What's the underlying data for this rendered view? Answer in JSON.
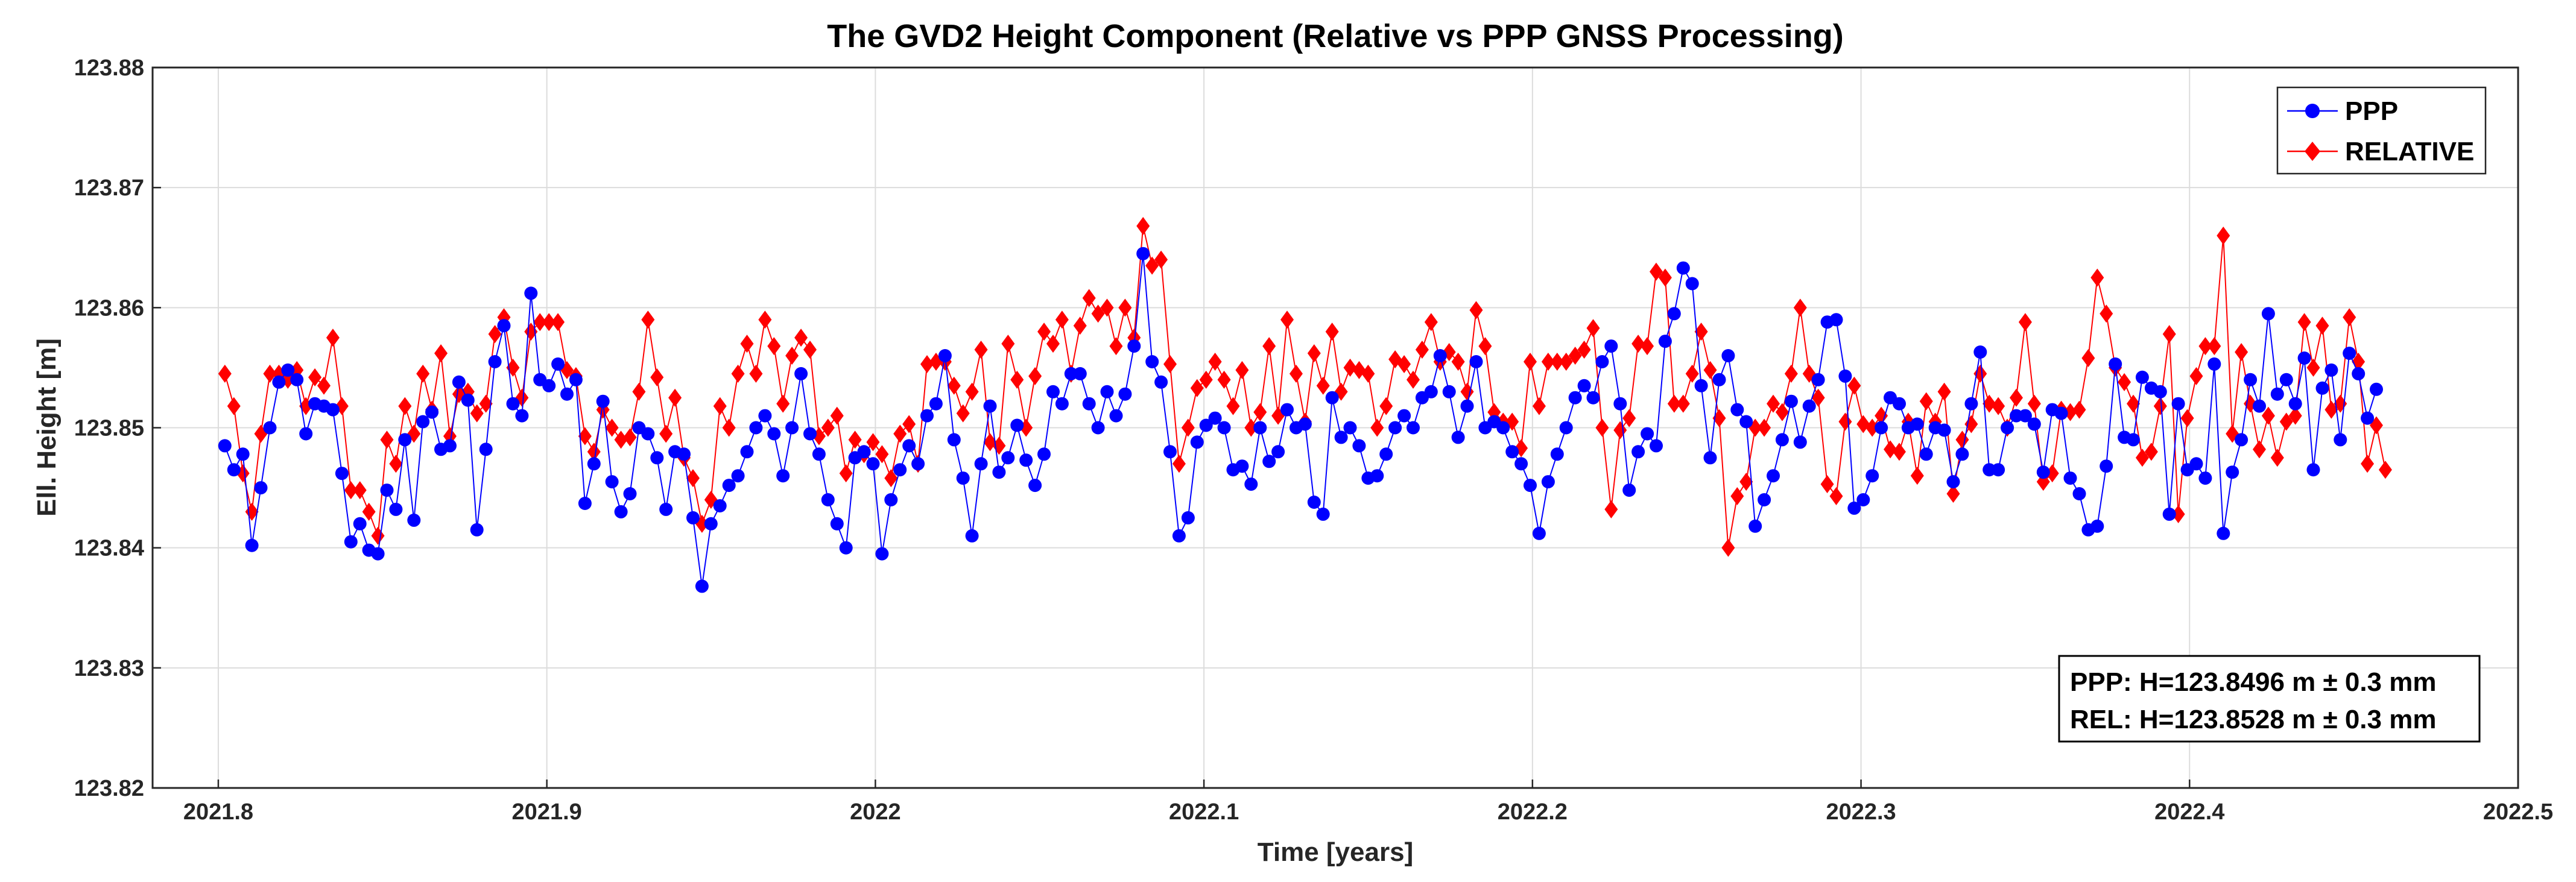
{
  "chart_data": {
    "type": "line",
    "title": "The GVD2 Height Component (Relative vs PPP GNSS Processing)",
    "xlabel": "Time [years]",
    "ylabel": "Ell. Height [m]",
    "xlim": [
      2021.78,
      2022.5
    ],
    "ylim": [
      123.82,
      123.88
    ],
    "x_ticks": [
      2021.8,
      2021.9,
      2022.0,
      2022.1,
      2022.2,
      2022.3,
      2022.4,
      2022.5
    ],
    "x_tick_labels": [
      "2021.8",
      "2021.9",
      "2022",
      "2022.1",
      "2022.2",
      "2022.3",
      "2022.4",
      "2022.5"
    ],
    "y_ticks": [
      123.82,
      123.83,
      123.84,
      123.85,
      123.86,
      123.87,
      123.88
    ],
    "y_tick_labels": [
      "123.82",
      "123.83",
      "123.84",
      "123.85",
      "123.86",
      "123.87",
      "123.88"
    ],
    "grid": true,
    "legend_position": "top-right",
    "stats_position": "bottom-right",
    "x_start": 2021.802,
    "x_step": 0.00274,
    "series": [
      {
        "name": "PPP",
        "color": "#0000FF",
        "marker": "circle",
        "values": [
          123.8485,
          123.8465,
          123.8478,
          123.8402,
          123.845,
          123.85,
          123.8538,
          123.8548,
          123.854,
          123.8495,
          123.852,
          123.8518,
          123.8515,
          123.8462,
          123.8405,
          123.842,
          123.8398,
          123.8395,
          123.8448,
          123.8432,
          123.849,
          123.8423,
          123.8505,
          123.8513,
          123.8482,
          123.8485,
          123.8538,
          123.8523,
          123.8415,
          123.8482,
          123.8555,
          123.8585,
          123.852,
          123.851,
          123.8612,
          123.854,
          123.8535,
          123.8553,
          123.8528,
          123.854,
          123.8437,
          123.847,
          123.8522,
          123.8455,
          123.843,
          123.8445,
          123.85,
          123.8495,
          123.8475,
          123.8432,
          123.848,
          123.8478,
          123.8425,
          123.8368,
          123.842,
          123.8435,
          123.8452,
          123.846,
          123.848,
          123.85,
          123.851,
          123.8495,
          123.846,
          123.85,
          123.8545,
          123.8495,
          123.8478,
          123.844,
          123.842,
          123.84,
          123.8475,
          123.848,
          123.847,
          123.8395,
          123.844,
          123.8465,
          123.8485,
          123.847,
          123.851,
          123.852,
          123.856,
          123.849,
          123.8458,
          123.841,
          123.847,
          123.8518,
          123.8463,
          123.8475,
          123.8502,
          123.8473,
          123.8452,
          123.8478,
          123.853,
          123.852,
          123.8545,
          123.8545,
          123.852,
          123.85,
          123.853,
          123.851,
          123.8528,
          123.8568,
          123.8645,
          123.8555,
          123.8538,
          123.848,
          123.841,
          123.8425,
          123.8488,
          123.8502,
          123.8508,
          123.85,
          123.8465,
          123.8468,
          123.8453,
          123.85,
          123.8472,
          123.848,
          123.8515,
          123.85,
          123.8503,
          123.8438,
          123.8428,
          123.8525,
          123.8492,
          123.85,
          123.8485,
          123.8458,
          123.846,
          123.8478,
          123.85,
          123.851,
          123.85,
          123.8525,
          123.853,
          123.856,
          123.853,
          123.8492,
          123.8518,
          123.8555,
          123.85,
          123.8505,
          123.85,
          123.848,
          123.847,
          123.8452,
          123.8412,
          123.8455,
          123.8478,
          123.85,
          123.8525,
          123.8535,
          123.8525,
          123.8555,
          123.8568,
          123.852,
          123.8448,
          123.848,
          123.8495,
          123.8485,
          123.8572,
          123.8595,
          123.8633,
          123.862,
          123.8535,
          123.8475,
          123.854,
          123.856,
          123.8515,
          123.8505,
          123.8418,
          123.844,
          123.846,
          123.849,
          123.8522,
          123.8488,
          123.8518,
          123.854,
          123.8588,
          123.859,
          123.8543,
          123.8433,
          123.844,
          123.846,
          123.85,
          123.8525,
          123.852,
          123.85,
          123.8503,
          123.8478,
          123.85,
          123.8498,
          123.8455,
          123.8478,
          123.852,
          123.8563,
          123.8465,
          123.8465,
          123.85,
          123.851,
          123.851,
          123.8503,
          123.8463,
          123.8515,
          123.8512,
          123.8458,
          123.8445,
          123.8415,
          123.8418,
          123.8468,
          123.8553,
          123.8492,
          123.849,
          123.8542,
          123.8533,
          123.853,
          123.8428,
          123.852,
          123.8465,
          123.847,
          123.8458,
          123.8553,
          123.8412,
          123.8463,
          123.849,
          123.854,
          123.8518,
          123.8595,
          123.8528,
          123.854,
          123.852,
          123.8558,
          123.8465,
          123.8533,
          123.8548,
          123.849,
          123.8562,
          123.8545,
          123.8508,
          123.8532
        ]
      },
      {
        "name": "RELATIVE",
        "color": "#FF0000",
        "marker": "diamond",
        "values": [
          123.8545,
          123.8518,
          123.8462,
          123.843,
          123.8495,
          123.8545,
          123.8545,
          123.854,
          123.8548,
          123.8518,
          123.8542,
          123.8535,
          123.8575,
          123.8518,
          123.8448,
          123.8448,
          123.843,
          123.841,
          123.849,
          123.847,
          123.8518,
          123.8495,
          123.8545,
          123.8515,
          123.8562,
          123.8493,
          123.8528,
          123.853,
          123.8512,
          123.852,
          123.8578,
          123.8592,
          123.855,
          123.8525,
          123.858,
          123.8588,
          123.8588,
          123.8588,
          123.8548,
          123.8543,
          123.8493,
          123.848,
          123.8515,
          123.85,
          123.849,
          123.8492,
          123.853,
          123.859,
          123.8542,
          123.8495,
          123.8525,
          123.8475,
          123.8458,
          123.842,
          123.844,
          123.8518,
          123.85,
          123.8545,
          123.857,
          123.8545,
          123.859,
          123.8568,
          123.852,
          123.856,
          123.8575,
          123.8565,
          123.8493,
          123.85,
          123.851,
          123.8462,
          123.849,
          123.8478,
          123.8488,
          123.8478,
          123.8458,
          123.8495,
          123.8503,
          123.847,
          123.8553,
          123.8555,
          123.8555,
          123.8535,
          123.8512,
          123.853,
          123.8565,
          123.8488,
          123.8485,
          123.857,
          123.854,
          123.85,
          123.8543,
          123.858,
          123.857,
          123.859,
          123.8545,
          123.8585,
          123.8608,
          123.8595,
          123.86,
          123.8568,
          123.86,
          123.8575,
          123.8668,
          123.8635,
          123.864,
          123.8553,
          123.847,
          123.85,
          123.8533,
          123.854,
          123.8555,
          123.854,
          123.8518,
          123.8548,
          123.85,
          123.8513,
          123.8568,
          123.851,
          123.859,
          123.8545,
          123.8505,
          123.8562,
          123.8535,
          123.858,
          123.853,
          123.855,
          123.8548,
          123.8545,
          123.85,
          123.8518,
          123.8557,
          123.8553,
          123.854,
          123.8565,
          123.8588,
          123.8555,
          123.8563,
          123.8555,
          123.853,
          123.8598,
          123.8568,
          123.8513,
          123.8505,
          123.8505,
          123.8483,
          123.8555,
          123.8518,
          123.8555,
          123.8555,
          123.8555,
          123.856,
          123.8565,
          123.8583,
          123.85,
          123.8432,
          123.8498,
          123.8508,
          123.857,
          123.8568,
          123.863,
          123.8625,
          123.852,
          123.852,
          123.8545,
          123.858,
          123.8548,
          123.8508,
          123.84,
          123.8443,
          123.8455,
          123.85,
          123.85,
          123.852,
          123.8513,
          123.8545,
          123.86,
          123.8545,
          123.8525,
          123.8453,
          123.8443,
          123.8505,
          123.8535,
          123.8503,
          123.85,
          123.851,
          123.8482,
          123.848,
          123.8505,
          123.846,
          123.8522,
          123.8505,
          123.853,
          123.8445,
          123.849,
          123.8503,
          123.8545,
          123.852,
          123.8518,
          123.85,
          123.8525,
          123.8588,
          123.852,
          123.8455,
          123.8462,
          123.8515,
          123.8513,
          123.8515,
          123.8558,
          123.8625,
          123.8595,
          123.855,
          123.8538,
          123.852,
          123.8475,
          123.848,
          123.8518,
          123.8578,
          123.8428,
          123.8508,
          123.8543,
          123.8568,
          123.8568,
          123.866,
          123.8495,
          123.8563,
          123.852,
          123.8482,
          123.851,
          123.8475,
          123.8505,
          123.851,
          123.8588,
          123.855,
          123.8585,
          123.8515,
          123.852,
          123.8592,
          123.8555,
          123.847,
          123.8502,
          123.8465
        ]
      }
    ],
    "stats_labels": [
      "PPP: H=123.8496 m ± 0.3 mm",
      "REL: H=123.8528 m ± 0.3 mm"
    ]
  }
}
